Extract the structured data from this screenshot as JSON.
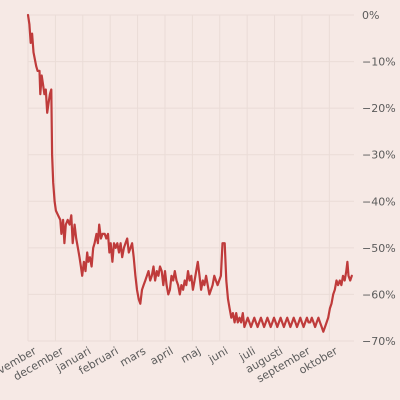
{
  "colors": {
    "background": "#f6e9e5",
    "grid": "#eadcd7",
    "line": "#bf3b3b",
    "text": "#5b5b5b"
  },
  "chart_data": {
    "type": "line",
    "title": "",
    "xlabel": "",
    "ylabel": "",
    "grid": true,
    "legend": "none",
    "ylim": [
      -70,
      0
    ],
    "yticks": [
      0,
      -10,
      -20,
      -30,
      -40,
      -50,
      -60,
      -70
    ],
    "ytick_labels": [
      "0%",
      "−10%",
      "−20%",
      "−30%",
      "−40%",
      "−50%",
      "−60%",
      "−70%"
    ],
    "xticks": [
      {
        "label": "november",
        "x": 0
      },
      {
        "label": "december",
        "x": 1
      },
      {
        "label": "januari",
        "x": 2
      },
      {
        "label": "februari",
        "x": 3
      },
      {
        "label": "mars",
        "x": 4
      },
      {
        "label": "april",
        "x": 5
      },
      {
        "label": "maj",
        "x": 6
      },
      {
        "label": "juni",
        "x": 7
      },
      {
        "label": "juli",
        "x": 8
      },
      {
        "label": "augusti",
        "x": 9
      },
      {
        "label": "september",
        "x": 10
      },
      {
        "label": "oktober",
        "x": 11
      }
    ],
    "xlim": [
      0,
      11.9
    ],
    "series": [
      {
        "values": [
          [
            0.0,
            0
          ],
          [
            0.05,
            -2
          ],
          [
            0.1,
            -6
          ],
          [
            0.15,
            -4
          ],
          [
            0.2,
            -8
          ],
          [
            0.3,
            -11
          ],
          [
            0.35,
            -12
          ],
          [
            0.42,
            -12
          ],
          [
            0.45,
            -17
          ],
          [
            0.5,
            -13
          ],
          [
            0.55,
            -15
          ],
          [
            0.6,
            -17
          ],
          [
            0.65,
            -16
          ],
          [
            0.7,
            -21
          ],
          [
            0.75,
            -19
          ],
          [
            0.8,
            -17
          ],
          [
            0.85,
            -16
          ],
          [
            0.88,
            -30
          ],
          [
            0.92,
            -36
          ],
          [
            0.97,
            -40
          ],
          [
            1.02,
            -42
          ],
          [
            1.1,
            -43
          ],
          [
            1.18,
            -44
          ],
          [
            1.22,
            -47
          ],
          [
            1.28,
            -44
          ],
          [
            1.33,
            -49
          ],
          [
            1.38,
            -45
          ],
          [
            1.45,
            -44
          ],
          [
            1.52,
            -45
          ],
          [
            1.58,
            -43
          ],
          [
            1.63,
            -49
          ],
          [
            1.7,
            -45
          ],
          [
            1.76,
            -48
          ],
          [
            1.82,
            -50
          ],
          [
            1.88,
            -52
          ],
          [
            1.93,
            -54
          ],
          [
            1.98,
            -56
          ],
          [
            2.04,
            -53
          ],
          [
            2.1,
            -55
          ],
          [
            2.16,
            -51
          ],
          [
            2.2,
            -53
          ],
          [
            2.26,
            -52
          ],
          [
            2.32,
            -54
          ],
          [
            2.38,
            -50
          ],
          [
            2.43,
            -49
          ],
          [
            2.5,
            -47
          ],
          [
            2.55,
            -49
          ],
          [
            2.6,
            -45
          ],
          [
            2.66,
            -48
          ],
          [
            2.72,
            -47
          ],
          [
            2.8,
            -47
          ],
          [
            2.86,
            -48
          ],
          [
            2.92,
            -47
          ],
          [
            2.97,
            -51
          ],
          [
            3.02,
            -49
          ],
          [
            3.08,
            -53
          ],
          [
            3.14,
            -49
          ],
          [
            3.2,
            -50
          ],
          [
            3.26,
            -49
          ],
          [
            3.32,
            -51
          ],
          [
            3.38,
            -49
          ],
          [
            3.44,
            -52
          ],
          [
            3.5,
            -50
          ],
          [
            3.56,
            -49
          ],
          [
            3.62,
            -48
          ],
          [
            3.68,
            -51
          ],
          [
            3.74,
            -50
          ],
          [
            3.8,
            -49
          ],
          [
            3.86,
            -52
          ],
          [
            3.92,
            -56
          ],
          [
            3.98,
            -59
          ],
          [
            4.04,
            -61
          ],
          [
            4.1,
            -62
          ],
          [
            4.16,
            -59
          ],
          [
            4.22,
            -58
          ],
          [
            4.28,
            -57
          ],
          [
            4.34,
            -56
          ],
          [
            4.4,
            -55
          ],
          [
            4.46,
            -57
          ],
          [
            4.52,
            -56
          ],
          [
            4.58,
            -54
          ],
          [
            4.64,
            -57
          ],
          [
            4.7,
            -55
          ],
          [
            4.76,
            -56
          ],
          [
            4.82,
            -54
          ],
          [
            4.88,
            -55
          ],
          [
            4.94,
            -58
          ],
          [
            5.0,
            -55
          ],
          [
            5.06,
            -58
          ],
          [
            5.12,
            -60
          ],
          [
            5.18,
            -59
          ],
          [
            5.24,
            -56
          ],
          [
            5.3,
            -57
          ],
          [
            5.36,
            -55
          ],
          [
            5.42,
            -57
          ],
          [
            5.48,
            -58
          ],
          [
            5.54,
            -60
          ],
          [
            5.6,
            -58
          ],
          [
            5.66,
            -59
          ],
          [
            5.72,
            -57
          ],
          [
            5.78,
            -58
          ],
          [
            5.84,
            -55
          ],
          [
            5.9,
            -57
          ],
          [
            5.96,
            -56
          ],
          [
            6.02,
            -59
          ],
          [
            6.08,
            -57
          ],
          [
            6.14,
            -55
          ],
          [
            6.2,
            -53
          ],
          [
            6.26,
            -56
          ],
          [
            6.32,
            -59
          ],
          [
            6.38,
            -57
          ],
          [
            6.44,
            -58
          ],
          [
            6.5,
            -56
          ],
          [
            6.56,
            -58
          ],
          [
            6.62,
            -60
          ],
          [
            6.68,
            -59
          ],
          [
            6.74,
            -58
          ],
          [
            6.8,
            -56
          ],
          [
            6.86,
            -57
          ],
          [
            6.92,
            -58
          ],
          [
            6.98,
            -57
          ],
          [
            7.04,
            -56
          ],
          [
            7.1,
            -49
          ],
          [
            7.18,
            -49
          ],
          [
            7.24,
            -57
          ],
          [
            7.3,
            -61
          ],
          [
            7.36,
            -63
          ],
          [
            7.42,
            -65
          ],
          [
            7.48,
            -64
          ],
          [
            7.54,
            -66
          ],
          [
            7.6,
            -64
          ],
          [
            7.66,
            -66
          ],
          [
            7.72,
            -65
          ],
          [
            7.78,
            -66
          ],
          [
            7.84,
            -64
          ],
          [
            7.9,
            -67
          ],
          [
            7.96,
            -66
          ],
          [
            8.02,
            -65
          ],
          [
            8.08,
            -66
          ],
          [
            8.14,
            -67
          ],
          [
            8.2,
            -66
          ],
          [
            8.26,
            -65
          ],
          [
            8.32,
            -66
          ],
          [
            8.38,
            -67
          ],
          [
            8.44,
            -66
          ],
          [
            8.5,
            -65
          ],
          [
            8.56,
            -66
          ],
          [
            8.62,
            -67
          ],
          [
            8.68,
            -66
          ],
          [
            8.74,
            -65
          ],
          [
            8.8,
            -66
          ],
          [
            8.86,
            -67
          ],
          [
            8.92,
            -66
          ],
          [
            8.98,
            -65
          ],
          [
            9.04,
            -66
          ],
          [
            9.1,
            -67
          ],
          [
            9.16,
            -66
          ],
          [
            9.22,
            -65
          ],
          [
            9.28,
            -66
          ],
          [
            9.34,
            -67
          ],
          [
            9.4,
            -66
          ],
          [
            9.46,
            -65
          ],
          [
            9.52,
            -66
          ],
          [
            9.58,
            -67
          ],
          [
            9.64,
            -66
          ],
          [
            9.7,
            -65
          ],
          [
            9.76,
            -66
          ],
          [
            9.82,
            -67
          ],
          [
            9.88,
            -66
          ],
          [
            9.94,
            -65
          ],
          [
            10.0,
            -66
          ],
          [
            10.06,
            -67
          ],
          [
            10.12,
            -66
          ],
          [
            10.18,
            -65
          ],
          [
            10.24,
            -66
          ],
          [
            10.3,
            -66
          ],
          [
            10.36,
            -65
          ],
          [
            10.42,
            -66
          ],
          [
            10.48,
            -67
          ],
          [
            10.54,
            -66
          ],
          [
            10.6,
            -65
          ],
          [
            10.66,
            -66
          ],
          [
            10.72,
            -67
          ],
          [
            10.78,
            -68
          ],
          [
            10.84,
            -67
          ],
          [
            10.9,
            -66
          ],
          [
            10.96,
            -65
          ],
          [
            11.02,
            -63
          ],
          [
            11.08,
            -62
          ],
          [
            11.14,
            -60
          ],
          [
            11.2,
            -59
          ],
          [
            11.26,
            -57
          ],
          [
            11.32,
            -58
          ],
          [
            11.38,
            -57
          ],
          [
            11.44,
            -58
          ],
          [
            11.5,
            -56
          ],
          [
            11.56,
            -57
          ],
          [
            11.62,
            -55
          ],
          [
            11.66,
            -53
          ],
          [
            11.7,
            -56
          ],
          [
            11.76,
            -57
          ],
          [
            11.82,
            -56
          ]
        ]
      }
    ]
  }
}
